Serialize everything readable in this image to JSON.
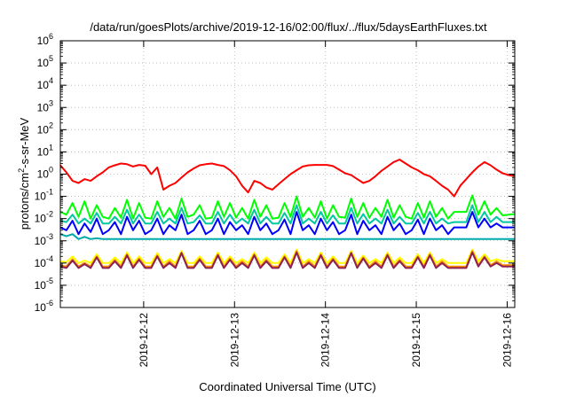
{
  "chart_data": {
    "type": "line",
    "title": "/data/run/goesPlots/archive/2019-12-16/02:00/flux/../flux/5daysEarthFluxes.txt",
    "xlabel": "Coordinated Universal Time (UTC)",
    "ylabel_parts": [
      "protons/cm",
      "2",
      "-s-sr-MeV"
    ],
    "yscale": "log",
    "ylim": [
      1e-06,
      1000000.0
    ],
    "ytick_exponents": [
      -6,
      -5,
      -4,
      -3,
      -2,
      -1,
      0,
      1,
      2,
      3,
      4,
      5,
      6
    ],
    "ytick_base": "10",
    "xlim": [
      "2019-12-11T02:00",
      "2019-12-16T02:00"
    ],
    "xticks": [
      "2019-12-12",
      "2019-12-13",
      "2019-12-14",
      "2019-12-15",
      "2019-12-16"
    ],
    "grid": true,
    "legend": "none",
    "series": [
      {
        "color": "#ff0000",
        "values": [
          2.5,
          1.2,
          0.5,
          0.4,
          0.6,
          0.5,
          0.8,
          1.2,
          2.0,
          2.5,
          3.0,
          2.8,
          2.2,
          2.6,
          2.4,
          1.0,
          2.0,
          0.2,
          0.3,
          0.4,
          0.7,
          1.2,
          1.8,
          2.5,
          2.8,
          3.0,
          2.6,
          2.3,
          1.5,
          0.8,
          0.3,
          0.15,
          0.5,
          0.4,
          0.25,
          0.2,
          0.35,
          0.6,
          1.0,
          1.5,
          2.2,
          2.5,
          2.6,
          2.6,
          2.6,
          2.3,
          1.6,
          1.1,
          0.9,
          0.6,
          0.4,
          0.5,
          0.8,
          1.4,
          2.2,
          3.5,
          4.5,
          3.0,
          2.0,
          1.5,
          1.0,
          0.8,
          0.5,
          0.3,
          0.2,
          0.1,
          0.3,
          0.6,
          1.2,
          2.2,
          3.5,
          2.5,
          1.6,
          1.1,
          0.9,
          0.8
        ]
      },
      {
        "color": "#00ff00",
        "values": [
          0.02,
          0.015,
          0.05,
          0.012,
          0.06,
          0.01,
          0.04,
          0.012,
          0.01,
          0.03,
          0.011,
          0.07,
          0.01,
          0.05,
          0.011,
          0.01,
          0.06,
          0.012,
          0.03,
          0.01,
          0.08,
          0.012,
          0.015,
          0.04,
          0.01,
          0.011,
          0.06,
          0.012,
          0.05,
          0.011,
          0.03,
          0.01,
          0.07,
          0.012,
          0.04,
          0.01,
          0.011,
          0.05,
          0.012,
          0.1,
          0.012,
          0.03,
          0.011,
          0.06,
          0.01,
          0.04,
          0.012,
          0.011,
          0.08,
          0.012,
          0.05,
          0.011,
          0.03,
          0.012,
          0.07,
          0.011,
          0.04,
          0.012,
          0.01,
          0.05,
          0.011,
          0.06,
          0.012,
          0.03,
          0.01,
          0.02,
          0.02,
          0.02,
          0.11,
          0.015,
          0.06,
          0.015,
          0.03,
          0.014,
          0.015,
          0.016
        ]
      },
      {
        "color": "#00c8a0",
        "values": [
          0.008,
          0.007,
          0.015,
          0.006,
          0.01,
          0.006,
          0.018,
          0.006,
          0.006,
          0.012,
          0.006,
          0.025,
          0.006,
          0.015,
          0.006,
          0.006,
          0.02,
          0.006,
          0.01,
          0.006,
          0.03,
          0.006,
          0.007,
          0.014,
          0.006,
          0.006,
          0.02,
          0.006,
          0.015,
          0.006,
          0.01,
          0.006,
          0.025,
          0.006,
          0.012,
          0.006,
          0.006,
          0.018,
          0.006,
          0.04,
          0.006,
          0.01,
          0.006,
          0.02,
          0.006,
          0.014,
          0.006,
          0.006,
          0.03,
          0.006,
          0.016,
          0.006,
          0.01,
          0.006,
          0.025,
          0.006,
          0.012,
          0.006,
          0.006,
          0.018,
          0.006,
          0.02,
          0.006,
          0.01,
          0.006,
          0.007,
          0.007,
          0.007,
          0.04,
          0.007,
          0.02,
          0.007,
          0.012,
          0.007,
          0.007,
          0.007
        ]
      },
      {
        "color": "#0000ff",
        "values": [
          0.004,
          0.003,
          0.008,
          0.002,
          0.006,
          0.0025,
          0.01,
          0.002,
          0.003,
          0.007,
          0.002,
          0.012,
          0.003,
          0.008,
          0.002,
          0.003,
          0.01,
          0.002,
          0.005,
          0.003,
          0.015,
          0.002,
          0.003,
          0.008,
          0.002,
          0.003,
          0.01,
          0.002,
          0.007,
          0.003,
          0.005,
          0.002,
          0.012,
          0.003,
          0.006,
          0.002,
          0.003,
          0.009,
          0.002,
          0.02,
          0.003,
          0.005,
          0.002,
          0.01,
          0.003,
          0.007,
          0.002,
          0.003,
          0.015,
          0.002,
          0.008,
          0.003,
          0.005,
          0.002,
          0.012,
          0.003,
          0.006,
          0.002,
          0.003,
          0.009,
          0.002,
          0.01,
          0.003,
          0.005,
          0.002,
          0.004,
          0.004,
          0.004,
          0.02,
          0.004,
          0.01,
          0.004,
          0.006,
          0.004,
          0.004,
          0.004
        ]
      },
      {
        "color": "#00aaaa",
        "values": [
          0.002,
          0.0016,
          0.002,
          0.0012,
          0.0015,
          0.0012,
          0.0013,
          0.0012,
          0.0012,
          0.0012,
          0.0012,
          0.0012,
          0.0012,
          0.0012,
          0.0012,
          0.0012,
          0.0012,
          0.0012,
          0.0012,
          0.0012,
          0.0012,
          0.0012,
          0.0012,
          0.0012,
          0.0012,
          0.0012,
          0.0012,
          0.0012,
          0.0012,
          0.0012,
          0.0012,
          0.0012,
          0.0012,
          0.0012,
          0.0012,
          0.0012,
          0.0012,
          0.0012,
          0.0012,
          0.0012,
          0.0012,
          0.0012,
          0.0012,
          0.0012,
          0.0012,
          0.0012,
          0.0012,
          0.0012,
          0.0012,
          0.0012,
          0.0012,
          0.0012,
          0.0012,
          0.0012,
          0.0012,
          0.0012,
          0.0012,
          0.0012,
          0.0012,
          0.0012,
          0.0012,
          0.0012,
          0.0012,
          0.0012,
          0.0012,
          0.0012,
          0.0012,
          0.0012,
          0.0012,
          0.0012,
          0.0012,
          0.0012,
          0.0012,
          0.0012,
          0.0012,
          0.0012
        ]
      },
      {
        "color": "#ffff00",
        "values": [
          0.00012,
          0.00011,
          0.0002,
          0.0001,
          0.00013,
          0.0001,
          0.00025,
          0.0001,
          0.0001,
          0.00018,
          0.0001,
          0.0003,
          0.0001,
          0.0002,
          0.0001,
          0.0001,
          0.00028,
          0.0001,
          0.00015,
          0.0001,
          0.00035,
          0.0001,
          0.0001,
          0.0002,
          0.0001,
          0.0001,
          0.0003,
          0.0001,
          0.0002,
          0.0001,
          0.00015,
          0.0001,
          0.0003,
          0.0001,
          0.00018,
          0.0001,
          0.0001,
          0.00025,
          0.0001,
          0.0004,
          0.0001,
          0.00015,
          0.0001,
          0.0003,
          0.0001,
          0.0002,
          0.0001,
          0.0001,
          0.00035,
          0.0001,
          0.00022,
          0.0001,
          0.00015,
          0.0001,
          0.0003,
          0.0001,
          0.00018,
          0.0001,
          0.0001,
          0.00025,
          0.0001,
          0.0003,
          0.0001,
          0.00015,
          0.0001,
          0.0001,
          0.0001,
          0.0001,
          0.0004,
          0.00012,
          0.00025,
          0.00012,
          0.00015,
          0.00012,
          0.00012,
          0.00012
        ]
      },
      {
        "color": "#ff8c00",
        "values": [
          8e-05,
          7e-05,
          0.00015,
          7e-05,
          0.0001,
          7e-05,
          0.0002,
          7e-05,
          7e-05,
          0.00014,
          7e-05,
          0.00025,
          7e-05,
          0.00016,
          7e-05,
          7e-05,
          0.00022,
          7e-05,
          0.00012,
          7e-05,
          0.0003,
          7e-05,
          7e-05,
          0.00016,
          7e-05,
          7e-05,
          0.00025,
          7e-05,
          0.00016,
          7e-05,
          0.00012,
          7e-05,
          0.00025,
          7e-05,
          0.00014,
          7e-05,
          7e-05,
          0.0002,
          7e-05,
          0.00035,
          7e-05,
          0.00012,
          7e-05,
          0.00025,
          7e-05,
          0.00016,
          7e-05,
          7e-05,
          0.0003,
          7e-05,
          0.00018,
          7e-05,
          0.00012,
          7e-05,
          0.00025,
          7e-05,
          0.00014,
          7e-05,
          7e-05,
          0.0002,
          7e-05,
          0.00025,
          7e-05,
          0.00012,
          7e-05,
          7e-05,
          7e-05,
          7e-05,
          0.00035,
          8e-05,
          0.0002,
          8e-05,
          0.00012,
          8e-05,
          8e-05,
          8e-05
        ]
      },
      {
        "color": "#8b2252",
        "values": [
          7e-05,
          6e-05,
          0.00013,
          6e-05,
          9e-05,
          6e-05,
          0.00018,
          6e-05,
          6e-05,
          0.00012,
          6e-05,
          0.00022,
          6e-05,
          0.00014,
          6e-05,
          6e-05,
          0.0002,
          6e-05,
          0.0001,
          6e-05,
          0.00028,
          6e-05,
          6e-05,
          0.00014,
          6e-05,
          6e-05,
          0.00022,
          6e-05,
          0.00014,
          6e-05,
          0.0001,
          6e-05,
          0.00022,
          6e-05,
          0.00012,
          6e-05,
          6e-05,
          0.00018,
          6e-05,
          0.0003,
          6e-05,
          0.0001,
          6e-05,
          0.00022,
          6e-05,
          0.00014,
          6e-05,
          6e-05,
          0.00028,
          6e-05,
          0.00016,
          6e-05,
          0.0001,
          6e-05,
          0.00022,
          6e-05,
          0.00012,
          6e-05,
          6e-05,
          0.00018,
          6e-05,
          0.00022,
          6e-05,
          0.0001,
          6e-05,
          6e-05,
          6e-05,
          6e-05,
          0.0003,
          7e-05,
          0.00018,
          7e-05,
          0.0001,
          7e-05,
          7e-05,
          7e-05
        ]
      }
    ]
  }
}
